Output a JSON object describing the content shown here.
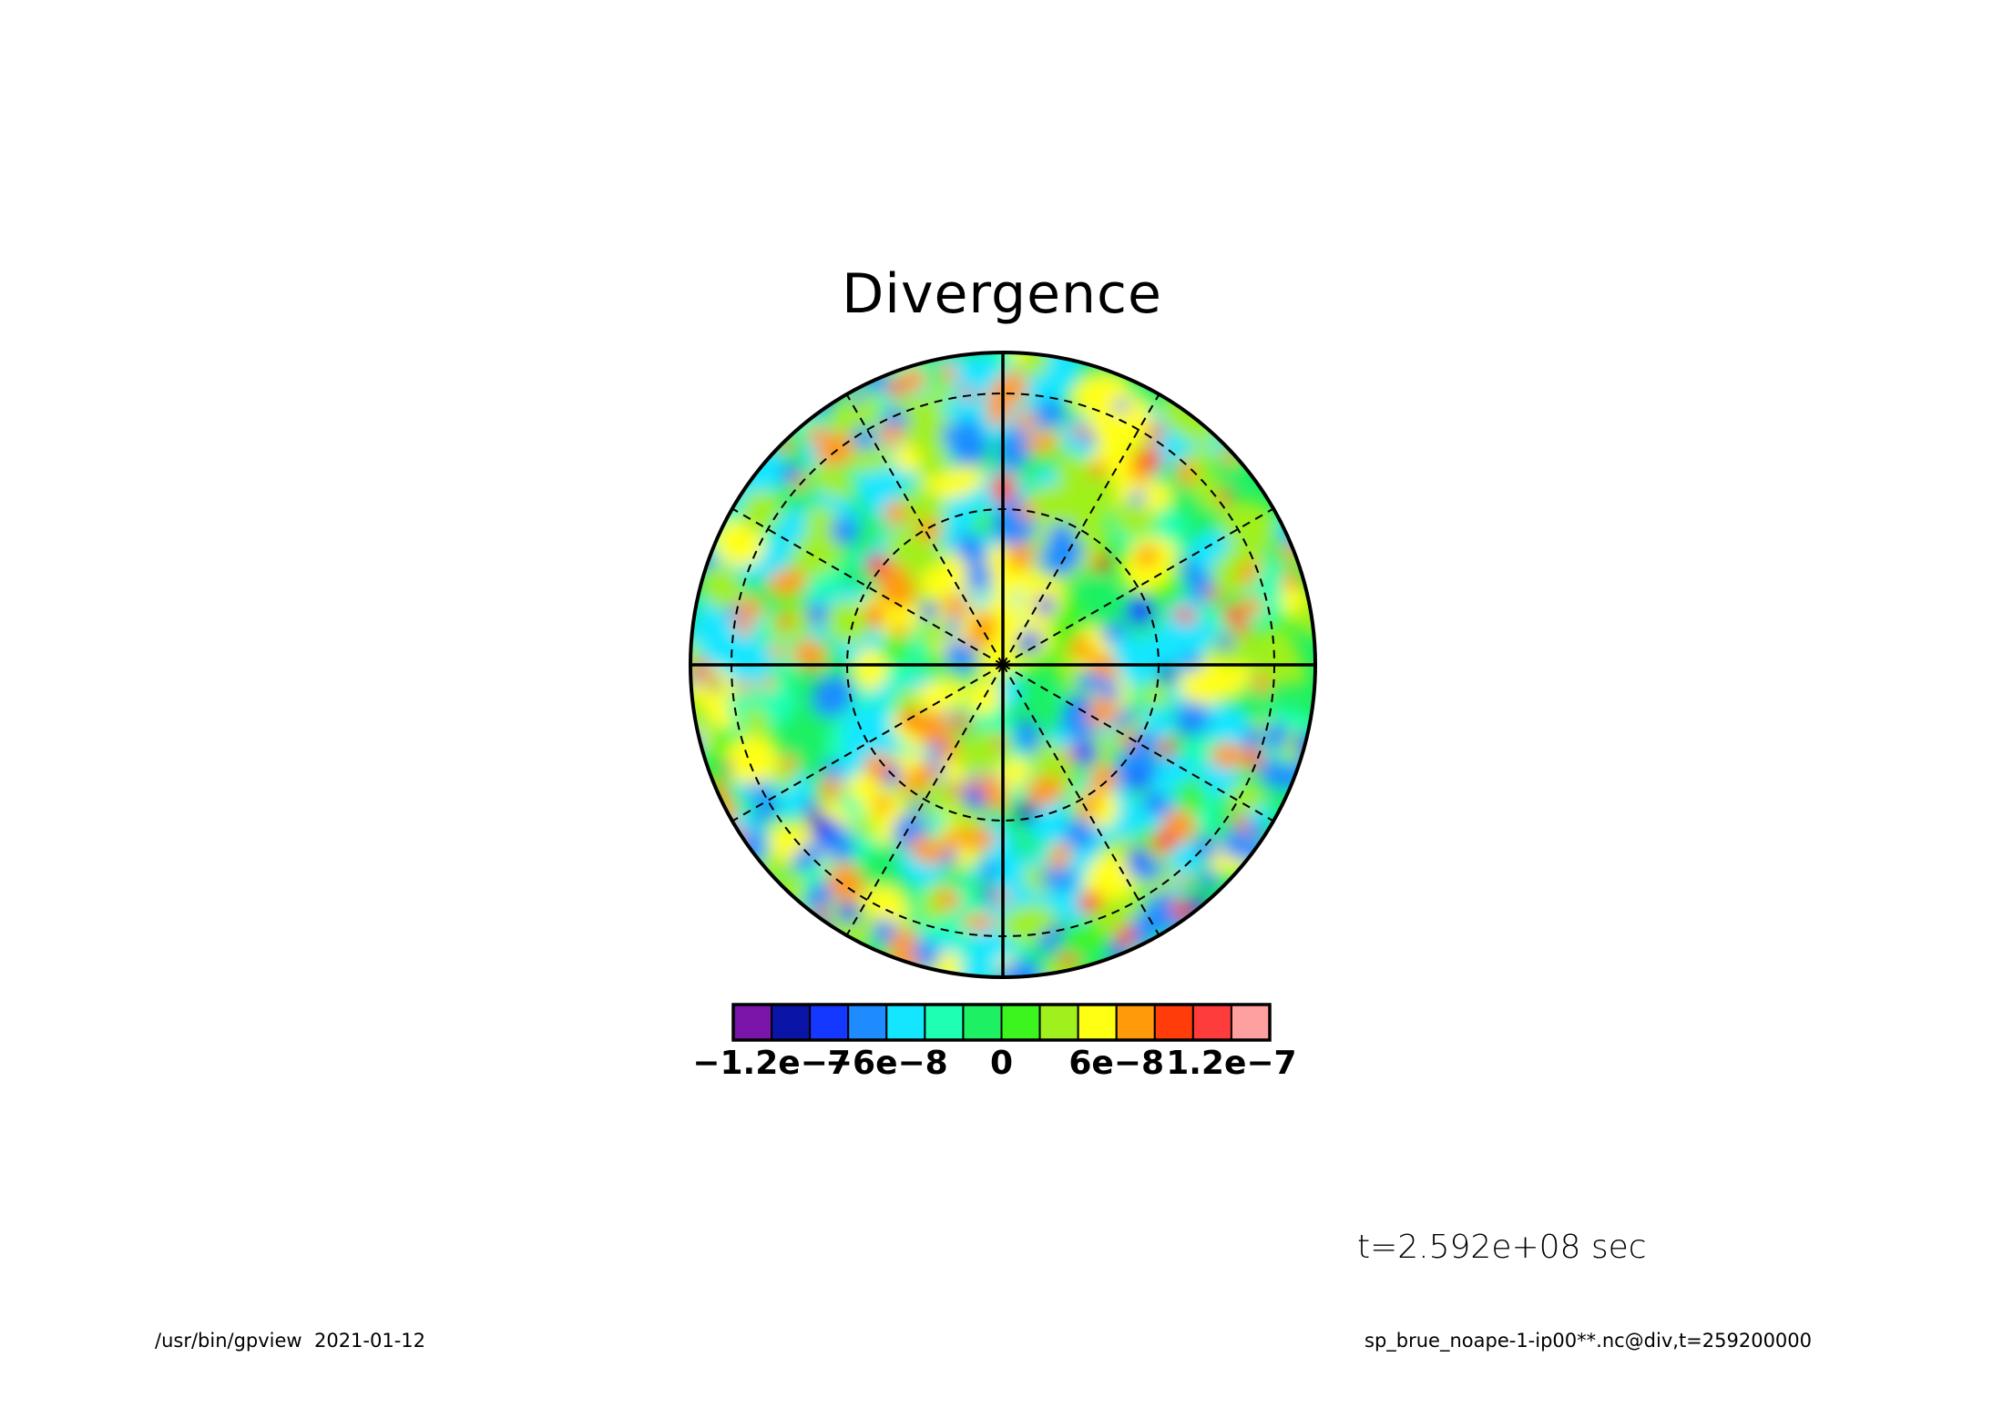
{
  "title": "Divergence",
  "time_label": "t=2.592e+08 sec",
  "footer": {
    "program": "/usr/bin/gpview",
    "date": "2021-01-12",
    "file_info": "sp_brue_noape-1-ip00**.nc@div,t=259200000"
  },
  "chart_data": {
    "type": "heatmap",
    "title": "Divergence",
    "projection": "polar stereographic (orthographic disk) centered on pole",
    "field": "random small-scale divergence field, values roughly within ±1.4e-7",
    "grid": {
      "longitude_lines_solid": [
        0,
        90,
        180,
        270
      ],
      "longitude_lines_dashed": [
        30,
        60,
        120,
        150,
        210,
        240,
        300,
        330
      ],
      "latitude_circles_dashed_count": 3
    },
    "colorbar": {
      "levels": [
        -1.4e-07,
        -1.2e-07,
        -1e-07,
        -8e-08,
        -6e-08,
        -4e-08,
        -2e-08,
        0,
        2e-08,
        4e-08,
        6e-08,
        8e-08,
        1e-07,
        1.2e-07,
        1.4e-07
      ],
      "colors": [
        "#7b14a8",
        "#0a14a6",
        "#1438ff",
        "#1e8cff",
        "#14e6ff",
        "#1effb4",
        "#1ef064",
        "#3cf51e",
        "#a0f01e",
        "#ffff14",
        "#ff9a0a",
        "#ff3c0a",
        "#ff3c3c",
        "#ffa0a0"
      ],
      "tick_labels": [
        "-1.2e-7",
        "-6e-8",
        "0",
        "6e-8",
        "1.2e-7"
      ],
      "tick_values": [
        -1.2e-07,
        -6e-08,
        0,
        6e-08,
        1.2e-07
      ]
    }
  }
}
